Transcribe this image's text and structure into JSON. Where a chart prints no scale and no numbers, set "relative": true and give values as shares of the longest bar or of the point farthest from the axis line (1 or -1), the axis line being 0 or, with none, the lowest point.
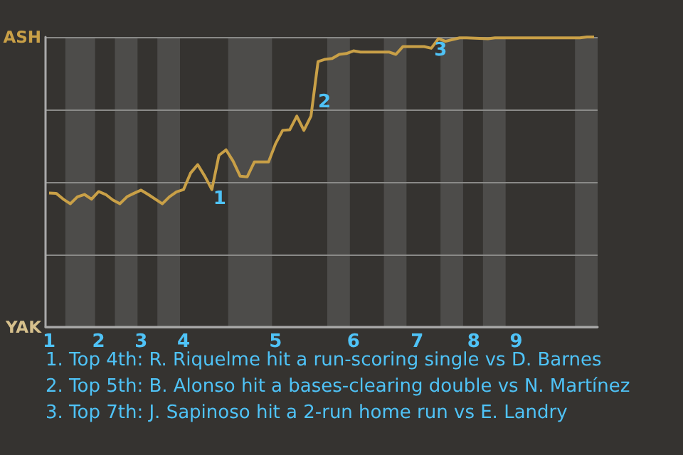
{
  "chart_data": {
    "type": "line",
    "relative": true,
    "categories": [
      "1",
      null,
      null,
      null,
      null,
      null,
      null,
      "2",
      null,
      null,
      null,
      null,
      null,
      "3",
      null,
      null,
      null,
      null,
      null,
      "4",
      null,
      null,
      null,
      null,
      null,
      null,
      null,
      null,
      null,
      null,
      null,
      null,
      "5",
      null,
      null,
      null,
      null,
      null,
      null,
      null,
      null,
      null,
      null,
      "6",
      null,
      null,
      null,
      null,
      null,
      null,
      null,
      null,
      "7",
      null,
      null,
      null,
      null,
      null,
      null,
      null,
      "8",
      null,
      null,
      null,
      null,
      null,
      "9",
      null,
      null,
      null,
      null,
      null,
      null,
      null,
      null,
      null,
      null,
      null
    ],
    "series": [
      {
        "color": "#c9a047",
        "values": [
          0.462,
          0.461,
          0.441,
          0.425,
          0.449,
          0.457,
          0.441,
          0.467,
          0.457,
          0.438,
          0.425,
          0.449,
          0.461,
          0.472,
          0.457,
          null,
          0.425,
          0.449,
          0.466,
          0.474,
          0.531,
          0.56,
          0.52,
          0.474,
          0.592,
          0.611,
          0.572,
          0.52,
          0.518,
          0.569,
          null,
          0.569,
          0.632,
          0.678,
          0.68,
          0.727,
          0.678,
          0.727,
          0.915,
          0.923,
          0.926,
          0.94,
          0.943,
          0.952,
          0.948,
          null,
          null,
          null,
          0.948,
          0.94,
          0.967,
          null,
          null,
          0.967,
          0.961,
          0.994,
          0.985,
          null,
          0.997,
          0.997,
          null,
          null,
          0.994,
          0.997,
          null,
          null,
          null,
          null,
          null,
          null,
          null,
          null,
          null,
          null,
          null,
          0.997,
          1,
          1
        ]
      }
    ],
    "grid": "y",
    "marker": "none",
    "annotations": [
      "ASH",
      "YAK",
      "1",
      "2",
      "3",
      "1. Top 4th: R. Riquelme hit a run-scoring single vs D. Barnes",
      "2. Top 5th: B. Alonso hit a bases-clearing double vs N. Martínez",
      "3. Top 7th: J. Sapinoso hit a 2-run home run vs E. Landry"
    ]
  }
}
